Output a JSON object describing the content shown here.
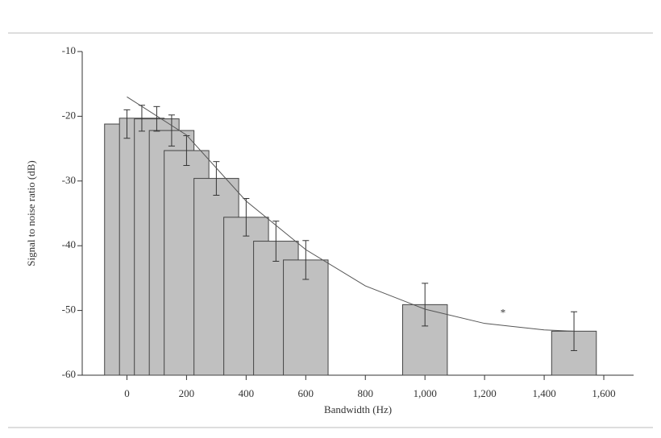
{
  "chart_data": {
    "type": "bar",
    "x_label": "Bandwidth (Hz)",
    "y_label": "Signal to noise ratio (dB)",
    "x": [
      0,
      50,
      100,
      150,
      200,
      300,
      400,
      500,
      600,
      1000,
      1500
    ],
    "values": [
      -21.2,
      -20.3,
      -20.4,
      -22.2,
      -25.3,
      -29.6,
      -35.6,
      -39.3,
      -42.2,
      -49.1,
      -53.2
    ],
    "errors": [
      2.2,
      2.0,
      1.9,
      2.4,
      2.3,
      2.6,
      2.9,
      3.1,
      3.0,
      3.3,
      3.0
    ],
    "bar_width": 150,
    "color": "#c0c0c0",
    "fit": {
      "x": [
        0,
        200,
        400,
        600,
        800,
        1000,
        1200,
        1400,
        1500
      ],
      "values": [
        -17.0,
        -22.9,
        -33.1,
        -40.6,
        -46.2,
        -49.8,
        -52.0,
        -53.0,
        -53.2
      ],
      "color": "#555555"
    },
    "annotations": [
      {
        "text": "*",
        "x": 1262,
        "y": -50.5
      }
    ],
    "xlim": [
      -150,
      1700
    ],
    "ylim": [
      -60,
      -10
    ],
    "xticks": [
      0,
      200,
      400,
      600,
      800,
      {
        "value": 1000,
        "label": "1,000"
      },
      {
        "value": 1200,
        "label": "1,200"
      },
      {
        "value": 1400,
        "label": "1,400"
      },
      {
        "value": 1600,
        "label": "1,600"
      }
    ],
    "yticks": [
      -60,
      -50,
      -40,
      -30,
      -20,
      -10
    ]
  }
}
